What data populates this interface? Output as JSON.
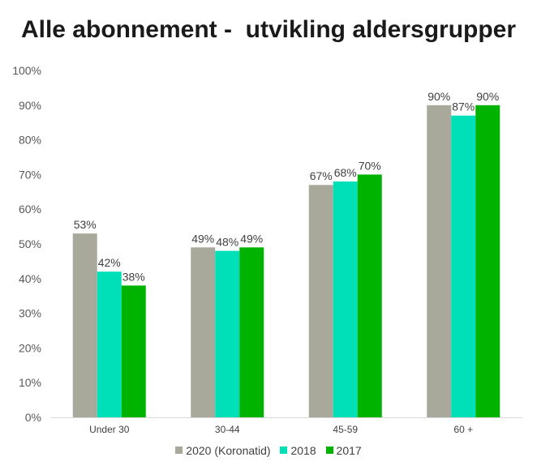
{
  "chart_data": {
    "type": "bar",
    "title": "Alle abonnement -  utvikling aldersgrupper",
    "xlabel": "",
    "ylabel": "",
    "ylim": [
      0,
      100
    ],
    "yticks": [
      "0%",
      "10%",
      "20%",
      "30%",
      "40%",
      "50%",
      "60%",
      "70%",
      "80%",
      "90%",
      "100%"
    ],
    "categories": [
      "Under 30",
      "30-44",
      "45-59",
      "60 +"
    ],
    "series": [
      {
        "name": "2020 (Koronatid)",
        "color": "#a9a99b",
        "values": [
          53,
          49,
          67,
          90
        ],
        "labels": [
          "53%",
          "49%",
          "67%",
          "90%"
        ]
      },
      {
        "name": "2018",
        "color": "#00e0b8",
        "values": [
          42,
          48,
          68,
          87
        ],
        "labels": [
          "42%",
          "48%",
          "68%",
          "87%"
        ]
      },
      {
        "name": "2017",
        "color": "#00b300",
        "values": [
          38,
          49,
          70,
          90
        ],
        "labels": [
          "38%",
          "49%",
          "70%",
          "90%"
        ]
      }
    ],
    "grid": false,
    "legend_position": "bottom"
  }
}
